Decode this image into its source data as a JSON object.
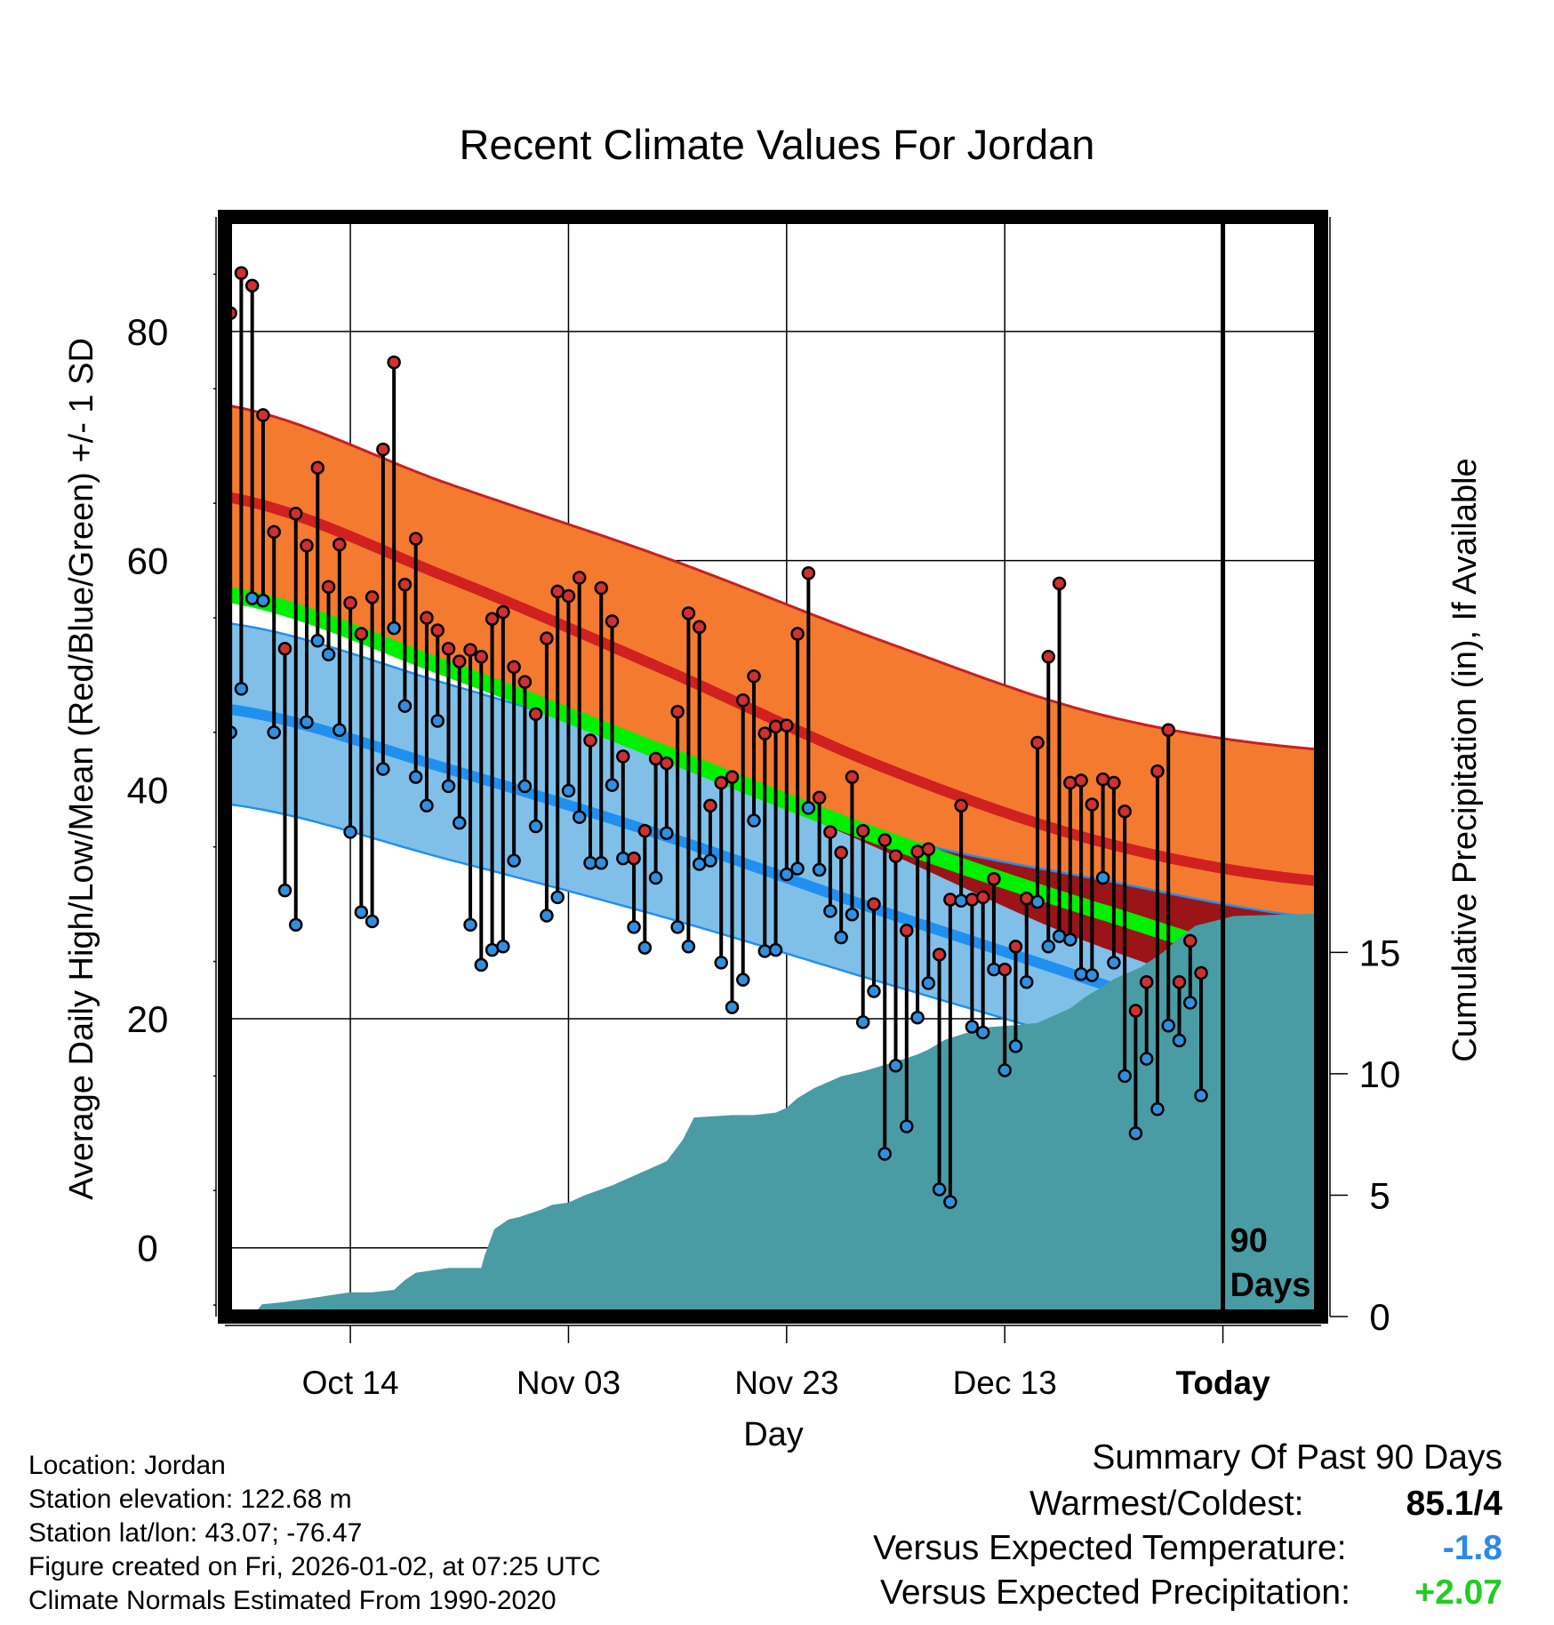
{
  "title": "Recent Climate Values For Jordan",
  "colors": {
    "high_band": "#f47a30",
    "high_normal": "#d02020",
    "low_band": "#80c0e8",
    "low_normal": "#2090f0",
    "mean_normal": "#00f000",
    "overlap": "#9a1418",
    "precip": "#4a9ca4",
    "high_dot": "#d03030",
    "low_dot": "#3090e0",
    "temp_delta": "#2a8ae8",
    "precip_delta": "#22cc22"
  },
  "chart_data": {
    "type": "line",
    "title": "Recent Climate Values For Jordan",
    "xlabel": "Day",
    "ylabel": "Average Daily High/Low/Mean (Red/Blue/Green) +/- 1 SD",
    "y2label": "Cumulative Precipitation (in), If Available",
    "x_ticks": [
      "Oct 14",
      "Nov 03",
      "Nov 23",
      "Dec 13",
      "Today"
    ],
    "x_tick_days": [
      12,
      32,
      52,
      72,
      92
    ],
    "xlim": [
      0.5,
      101
    ],
    "ylim": [
      -6,
      90
    ],
    "y_ticks": [
      0,
      20,
      40,
      60,
      80
    ],
    "y2lim": [
      0,
      45.3
    ],
    "y2_ticks": [
      0,
      5,
      10,
      15
    ],
    "grid": true,
    "today_day": 92,
    "today_label": [
      "90",
      "Days"
    ],
    "normals": {
      "day": [
        1,
        21,
        41,
        61,
        81,
        101
      ],
      "high_plus_sd": [
        73.5,
        66.7,
        60.2,
        52.9,
        46.5,
        43.5
      ],
      "high_mean": [
        65.5,
        58.5,
        50.4,
        41.9,
        35.4,
        32
      ],
      "mean": [
        57,
        50.5,
        43.1,
        35.7,
        29.3,
        24
      ],
      "low_mean": [
        47,
        41.8,
        35.9,
        29.3,
        23,
        16.3
      ],
      "low_plus_sd": [
        54.5,
        49.2,
        43.3,
        36.1,
        32.1,
        28.8
      ],
      "low_minus_sd": [
        38.7,
        33.9,
        28.8,
        23.1,
        17.5,
        12
      ],
      "high_minus_sd": [
        57,
        50.8,
        43,
        34.6,
        26.2,
        20.8
      ]
    },
    "series": [
      {
        "name": "High",
        "values": [
          81.6,
          85.1,
          84.0,
          72.7,
          62.5,
          52.3,
          64.1,
          61.3,
          68.1,
          57.7,
          61.4,
          56.3,
          53.6,
          56.8,
          69.7,
          77.3,
          57.9,
          61.9,
          55.0,
          53.9,
          52.3,
          51.2,
          52.2,
          51.6,
          54.9,
          55.5,
          50.7,
          49.4,
          46.6,
          53.2,
          57.3,
          56.9,
          58.5,
          44.3,
          57.6,
          54.7,
          42.9,
          34.0,
          36.4,
          42.7,
          42.3,
          46.8,
          55.4,
          54.2,
          38.6,
          40.6,
          41.1,
          47.8,
          49.9,
          44.9,
          45.5,
          45.6,
          53.6,
          58.9,
          39.3,
          36.3,
          34.5,
          41.1,
          36.4,
          30.0,
          35.6,
          34.2,
          27.7,
          34.6,
          34.8,
          25.6,
          30.4,
          38.6,
          30.4,
          30.6,
          32.2,
          24.3,
          26.3,
          30.5,
          44.1,
          51.6,
          58.0,
          40.6,
          40.8,
          38.7,
          40.9,
          40.6,
          38.1,
          20.7,
          23.2,
          41.6,
          45.2,
          23.2,
          26.8,
          24.0
        ]
      },
      {
        "name": "Low",
        "values": [
          45.0,
          48.8,
          56.7,
          56.5,
          45.0,
          31.2,
          28.2,
          45.9,
          53.0,
          51.8,
          45.2,
          36.3,
          29.3,
          28.5,
          41.8,
          54.1,
          47.3,
          41.1,
          38.6,
          46.0,
          40.3,
          37.1,
          28.2,
          24.7,
          26.0,
          26.3,
          33.8,
          40.3,
          36.8,
          29.0,
          30.6,
          39.9,
          37.6,
          33.6,
          33.6,
          40.4,
          34.0,
          28.0,
          26.2,
          32.3,
          36.2,
          28.0,
          26.3,
          33.5,
          33.8,
          24.9,
          21.0,
          23.4,
          37.3,
          25.9,
          26.0,
          32.6,
          33.1,
          38.4,
          33.0,
          29.4,
          27.1,
          29.1,
          19.7,
          22.4,
          8.2,
          15.9,
          10.6,
          20.1,
          23.1,
          5.1,
          4.0,
          30.3,
          19.3,
          18.8,
          24.3,
          15.5,
          17.6,
          23.2,
          30.2,
          26.3,
          27.2,
          26.9,
          23.9,
          23.8,
          32.3,
          24.9,
          15.0,
          10.0,
          16.5,
          12.1,
          19.4,
          18.1,
          21.4,
          13.3
        ]
      },
      {
        "name": "Cumulative Precipitation",
        "day": [
          3,
          3.9,
          6,
          9,
          12,
          14,
          16,
          17,
          18,
          21,
          24,
          24.3,
          25.2,
          26.5,
          27.5,
          29.5,
          30.5,
          32,
          33.5,
          36,
          37.5,
          39,
          41,
          42.5,
          43.5,
          47,
          49,
          51,
          52,
          53,
          54.5,
          57,
          59,
          62,
          64,
          65,
          66.5,
          70,
          73,
          75,
          77,
          78,
          79.5,
          81,
          82,
          84.5,
          85.5,
          86.5,
          88,
          89.5,
          93,
          101
        ],
        "values": [
          0,
          0.5,
          0.6,
          0.8,
          1.0,
          1.0,
          1.1,
          1.5,
          1.8,
          2.0,
          2.0,
          2.5,
          3.6,
          4.0,
          4.1,
          4.4,
          4.6,
          4.7,
          5.0,
          5.4,
          5.7,
          6.0,
          6.4,
          7.3,
          8.2,
          8.3,
          8.3,
          8.4,
          8.6,
          9.0,
          9.4,
          9.9,
          10.1,
          10.5,
          10.8,
          11.0,
          11.4,
          11.9,
          12.0,
          12.1,
          12.5,
          12.7,
          13.2,
          13.6,
          13.9,
          14.4,
          14.7,
          15.0,
          15.6,
          16.1,
          16.5,
          16.6
        ]
      }
    ]
  },
  "location": "Location: Jordan",
  "elevation": "Station elevation: 122.68 m",
  "latlon": "Station lat/lon: 43.07; -76.47",
  "created": "Figure created on Fri, 2026-01-02, at 07:25 UTC",
  "normals_note": "Climate Normals Estimated From 1990-2020",
  "summary": {
    "heading": "Summary Of Past 90 Days",
    "warmest_label": "Warmest/Coldest:",
    "warmest_value": "85.1/4",
    "temp_label": "Versus Expected Temperature:",
    "temp_value": "-1.8",
    "precip_label": "Versus Expected Precipitation:",
    "precip_value": "+2.07"
  }
}
